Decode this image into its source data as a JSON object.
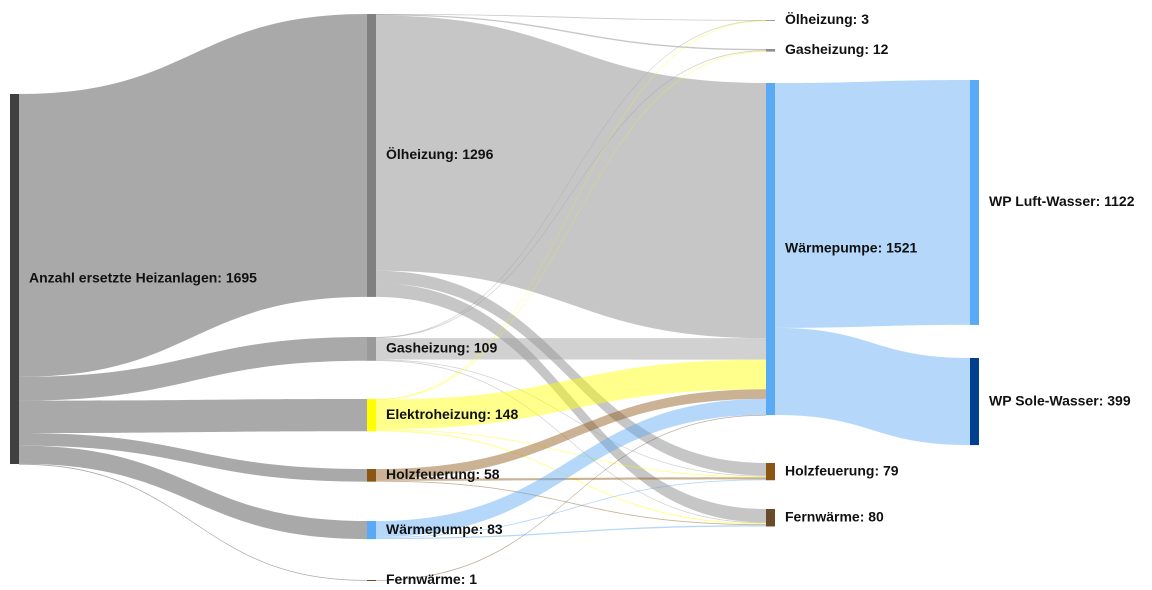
{
  "chart_data": {
    "type": "sankey",
    "nodes": [
      {
        "label": "Anzahl ersetzte Heizanlagen: 1695",
        "value": 1695,
        "color": "#404040"
      },
      {
        "label": "Ölheizung: 1296",
        "value": 1296,
        "color": "#808080"
      },
      {
        "label": "Gasheizung: 109",
        "value": 109,
        "color": "#9a9a9a"
      },
      {
        "label": "Elektroheizung: 148",
        "value": 148,
        "color": "#ffff00"
      },
      {
        "label": "Holzfeuerung: 58",
        "value": 58,
        "color": "#8b5513"
      },
      {
        "label": "Wärmepumpe: 83",
        "value": 83,
        "color": "#5aa9f5"
      },
      {
        "label": "Fernwärme: 1",
        "value": 1,
        "color": "#6b4a2a"
      },
      {
        "label": "Ölheizung: 3",
        "value": 3,
        "color": "#a0a0a0"
      },
      {
        "label": "Gasheizung: 12",
        "value": 12,
        "color": "#909090"
      },
      {
        "label": "Wärmepumpe: 1521",
        "value": 1521,
        "color": "#5aa9f5"
      },
      {
        "label": "Holzfeuerung: 79",
        "value": 79,
        "color": "#8b5513"
      },
      {
        "label": "Fernwärme: 80",
        "value": 80,
        "color": "#6b4a2a"
      },
      {
        "label": "WP Luft-Wasser: 1122",
        "value": 1122,
        "color": "#5aa9f5"
      },
      {
        "label": "WP Sole-Wasser: 399",
        "value": 399,
        "color": "#00408f"
      }
    ],
    "links": [
      {
        "source": 0,
        "target": 1,
        "value": 1296
      },
      {
        "source": 0,
        "target": 2,
        "value": 109
      },
      {
        "source": 0,
        "target": 3,
        "value": 148
      },
      {
        "source": 0,
        "target": 4,
        "value": 58
      },
      {
        "source": 0,
        "target": 5,
        "value": 83
      },
      {
        "source": 0,
        "target": 6,
        "value": 1
      },
      {
        "source": 1,
        "target": 7,
        "value": 1
      },
      {
        "source": 1,
        "target": 8,
        "value": 6
      },
      {
        "source": 1,
        "target": 9,
        "value": 1169
      },
      {
        "source": 1,
        "target": 10,
        "value": 58
      },
      {
        "source": 1,
        "target": 11,
        "value": 62
      },
      {
        "source": 2,
        "target": 7,
        "value": 1
      },
      {
        "source": 2,
        "target": 8,
        "value": 4
      },
      {
        "source": 2,
        "target": 9,
        "value": 98
      },
      {
        "source": 2,
        "target": 10,
        "value": 3
      },
      {
        "source": 2,
        "target": 11,
        "value": 3
      },
      {
        "source": 3,
        "target": 7,
        "value": 1
      },
      {
        "source": 3,
        "target": 8,
        "value": 2
      },
      {
        "source": 3,
        "target": 9,
        "value": 136
      },
      {
        "source": 3,
        "target": 10,
        "value": 4
      },
      {
        "source": 3,
        "target": 11,
        "value": 5
      },
      {
        "source": 4,
        "target": 9,
        "value": 44
      },
      {
        "source": 4,
        "target": 10,
        "value": 10
      },
      {
        "source": 4,
        "target": 11,
        "value": 4
      },
      {
        "source": 5,
        "target": 9,
        "value": 73
      },
      {
        "source": 5,
        "target": 10,
        "value": 4
      },
      {
        "source": 5,
        "target": 11,
        "value": 6
      },
      {
        "source": 6,
        "target": 9,
        "value": 1
      },
      {
        "source": 9,
        "target": 12,
        "value": 1122
      },
      {
        "source": 9,
        "target": 13,
        "value": 399
      }
    ]
  }
}
